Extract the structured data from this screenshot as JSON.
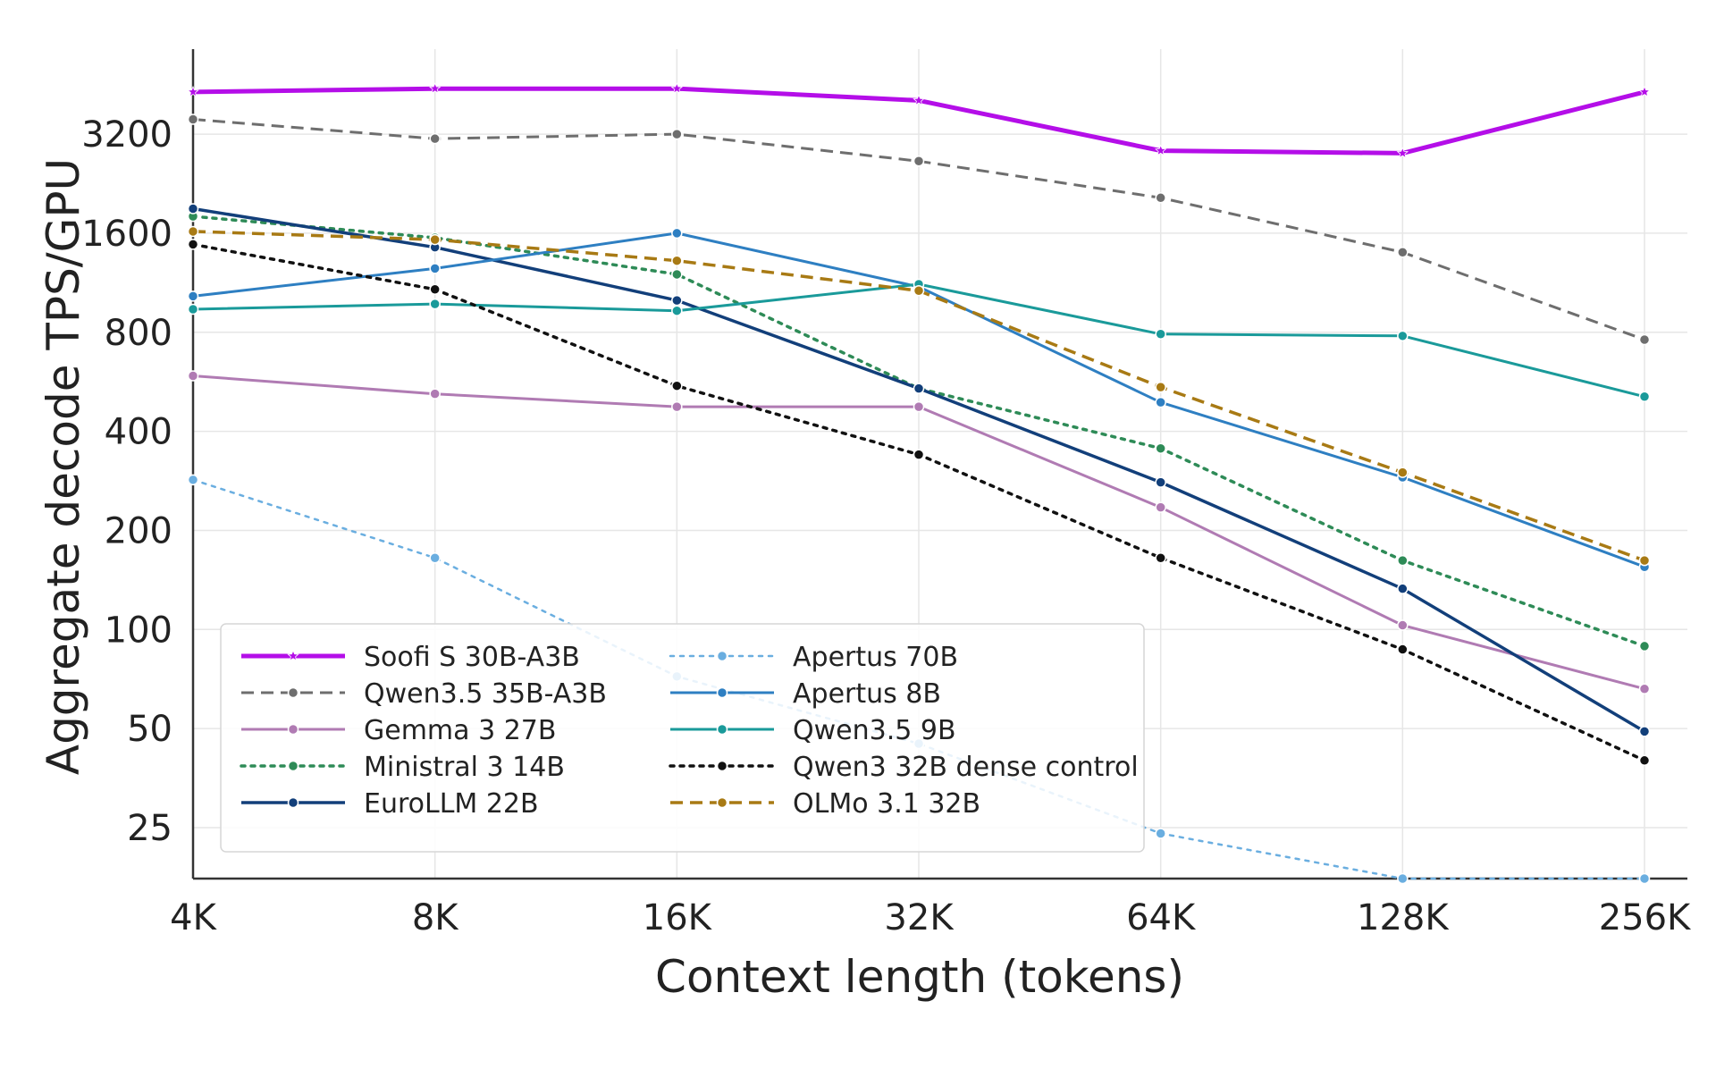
{
  "chart_data": {
    "type": "line",
    "xlabel": "Context length (tokens)",
    "ylabel": "Aggregate decode TPS/GPU",
    "x_scale": "log2",
    "y_scale": "log",
    "categories": [
      "4K",
      "8K",
      "16K",
      "32K",
      "64K",
      "128K",
      "256K"
    ],
    "y_ticks": [
      25,
      50,
      100,
      200,
      400,
      800,
      1600,
      3200
    ],
    "ylim": [
      17.5,
      5800
    ],
    "grid": true,
    "legend_position": "lower-left",
    "series": [
      {
        "name": "Soofi S 30B-A3B",
        "color": "#b40ee8",
        "style": "solid",
        "width": 5,
        "marker": "star",
        "values": [
          4300,
          4400,
          4400,
          4050,
          2850,
          2800,
          4300
        ]
      },
      {
        "name": "Qwen3.5 35B-A3B",
        "color": "#6e6e6e",
        "style": "dashed",
        "width": 3,
        "marker": "circle",
        "values": [
          3550,
          3100,
          3200,
          2650,
          2050,
          1400,
          760
        ]
      },
      {
        "name": "Gemma 3 27B",
        "color": "#b07bb3",
        "style": "solid",
        "width": 3,
        "marker": "circle",
        "values": [
          590,
          520,
          475,
          475,
          235,
          103,
          66
        ]
      },
      {
        "name": "Ministral 3 14B",
        "color": "#2e8b57",
        "style": "dotted",
        "width": 3.5,
        "marker": "circle",
        "values": [
          1800,
          1550,
          1200,
          540,
          355,
          162,
          89
        ]
      },
      {
        "name": "EuroLLM 22B",
        "color": "#123f7a",
        "style": "solid",
        "width": 3.5,
        "marker": "circle",
        "values": [
          1900,
          1450,
          1000,
          540,
          280,
          133,
          49
        ]
      },
      {
        "name": "Apertus 70B",
        "color": "#6aaee0",
        "style": "dotted",
        "width": 2.5,
        "marker": "circle",
        "values": [
          285,
          165,
          72,
          45,
          24,
          17.5,
          17.5
        ]
      },
      {
        "name": "Apertus 8B",
        "color": "#2e7fc2",
        "style": "solid",
        "width": 3,
        "marker": "circle",
        "values": [
          1030,
          1250,
          1600,
          1100,
          490,
          290,
          155
        ]
      },
      {
        "name": "Qwen3.5 9B",
        "color": "#1a9a9a",
        "style": "solid",
        "width": 3,
        "marker": "circle",
        "values": [
          940,
          975,
          930,
          1120,
          790,
          780,
          510
        ]
      },
      {
        "name": "Qwen3 32B dense control",
        "color": "#111111",
        "style": "dotted",
        "width": 3.5,
        "marker": "circle",
        "values": [
          1480,
          1080,
          550,
          340,
          165,
          87,
          40
        ]
      },
      {
        "name": "OLMo 3.1 32B",
        "color": "#a87a14",
        "style": "dashed",
        "width": 3.5,
        "marker": "circle",
        "values": [
          1620,
          1530,
          1320,
          1070,
          545,
          300,
          162
        ]
      }
    ]
  }
}
